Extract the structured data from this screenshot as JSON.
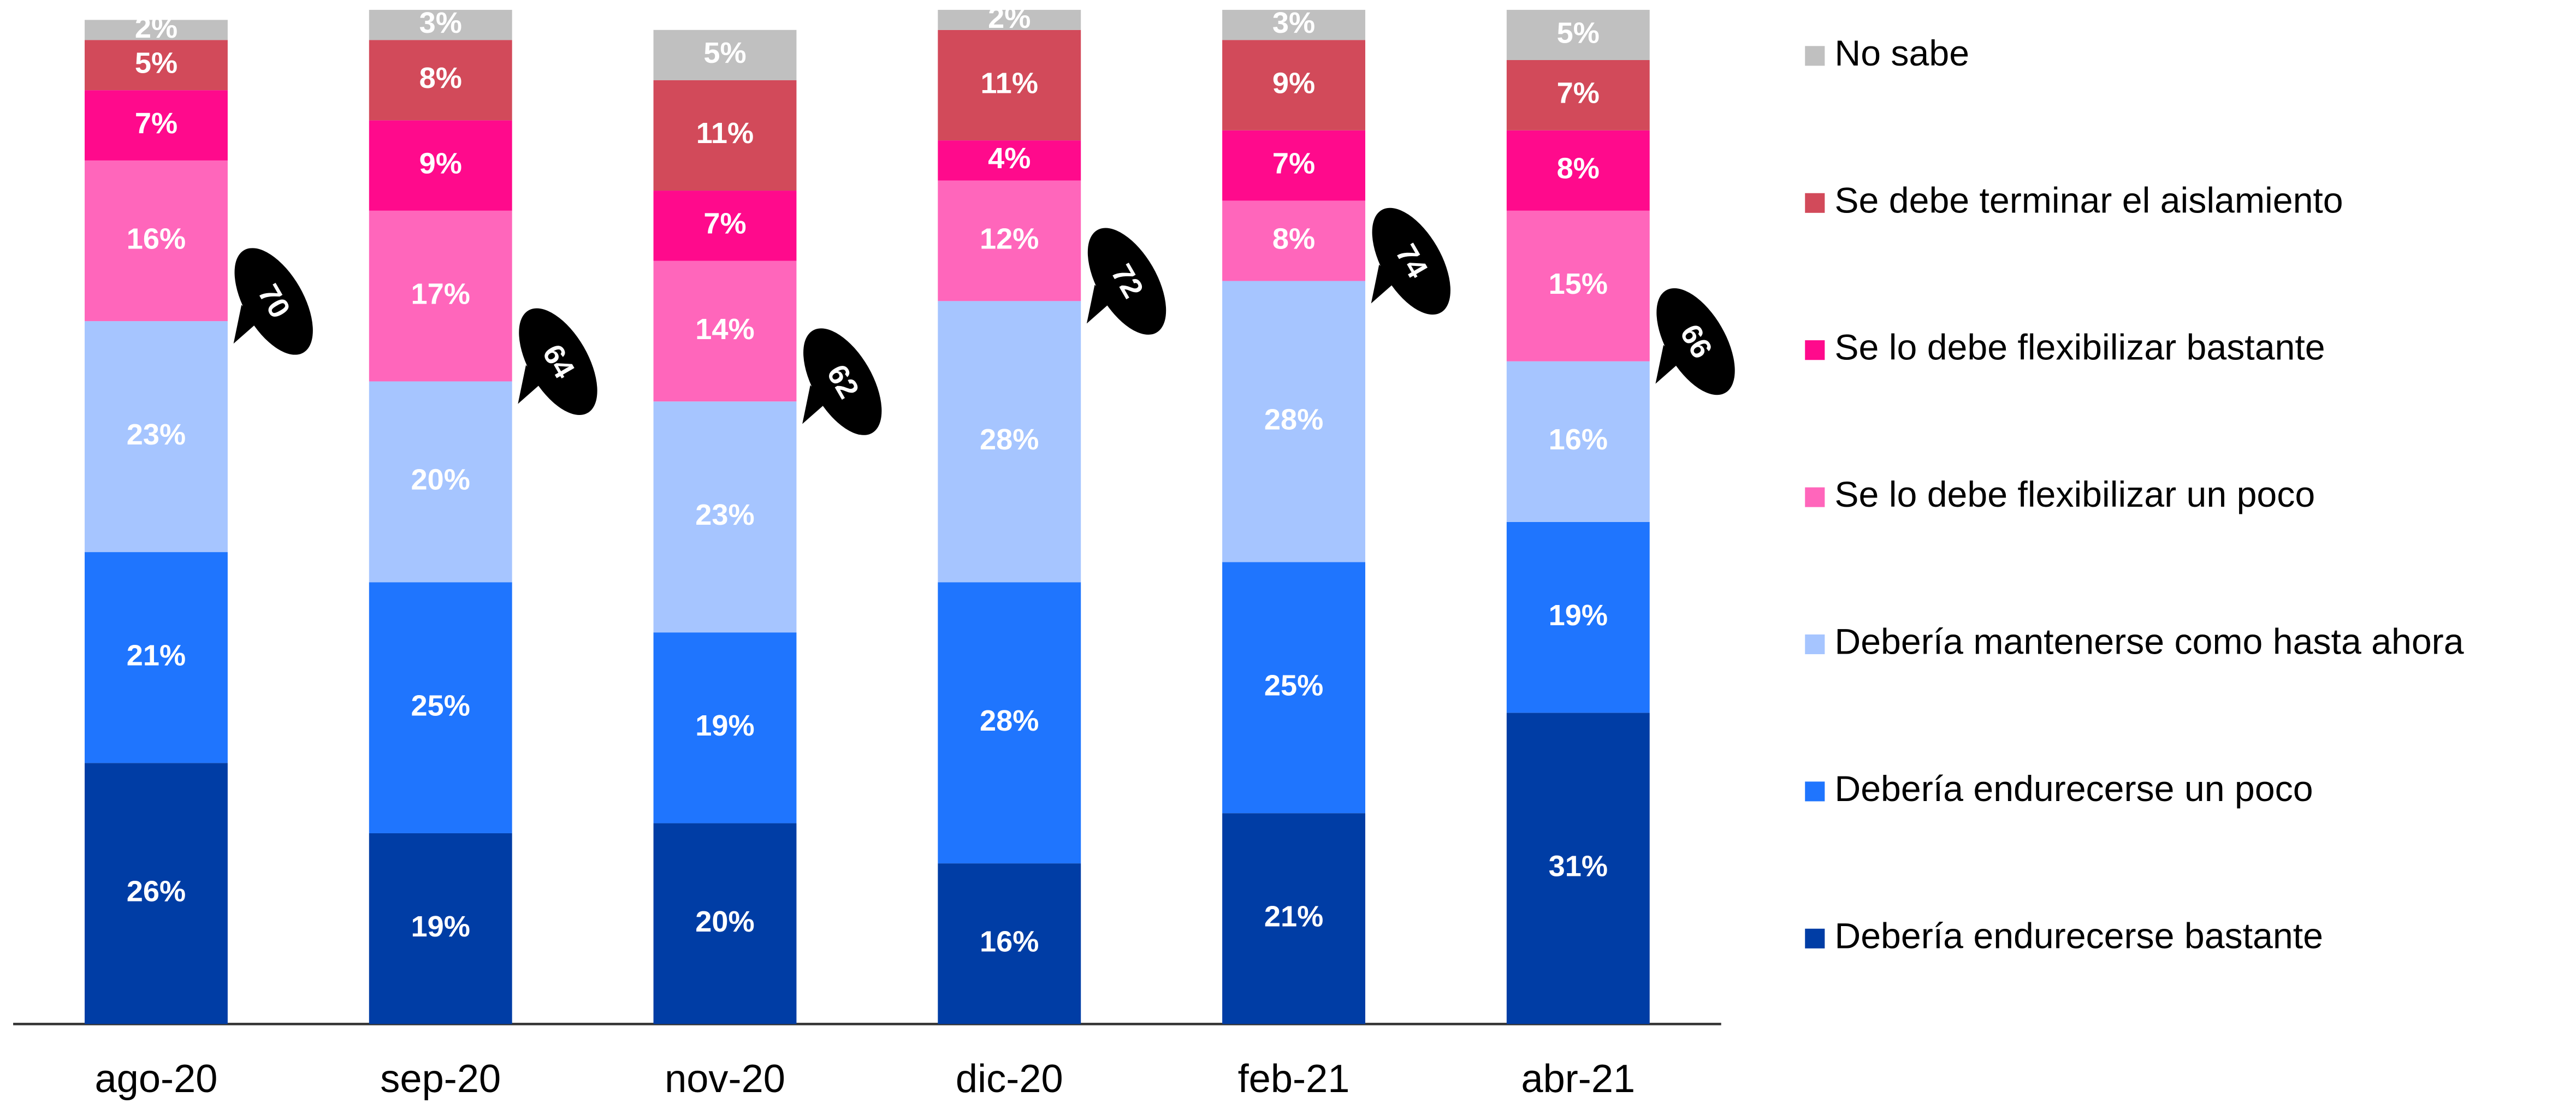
{
  "chart_data": {
    "type": "stacked-bar",
    "categories": [
      "ago-20",
      "sep-20",
      "nov-20",
      "dic-20",
      "feb-21",
      "abr-21"
    ],
    "series": [
      {
        "name": "Debería endurecerse bastante",
        "color": "#003da5",
        "values": [
          26,
          19,
          20,
          16,
          21,
          31
        ],
        "value_labels": [
          "26%",
          "19%",
          "20%",
          "16%",
          "21%",
          "31%"
        ]
      },
      {
        "name": "Debería endurecerse un poco",
        "color": "#1f75fe",
        "values": [
          21,
          25,
          19,
          28,
          25,
          19
        ],
        "value_labels": [
          "21%",
          "25%",
          "19%",
          "28%",
          "25%",
          "19%"
        ]
      },
      {
        "name": "Debería mantenerse como hasta ahora",
        "color": "#a6c5ff",
        "values": [
          23,
          20,
          23,
          28,
          28,
          16
        ],
        "value_labels": [
          "23%",
          "20%",
          "23%",
          "28%",
          "28%",
          "16%"
        ]
      },
      {
        "name": "Se lo debe flexibilizar un poco",
        "color": "#ff66bb",
        "values": [
          16,
          17,
          14,
          12,
          8,
          15
        ],
        "value_labels": [
          "16%",
          "17%",
          "14%",
          "12%",
          "8%",
          "15%"
        ]
      },
      {
        "name": "Se lo debe flexibilizar bastante",
        "color": "#ff0a8c",
        "values": [
          7,
          9,
          7,
          4,
          7,
          8
        ],
        "value_labels": [
          "7%",
          "9%",
          "7%",
          "4%",
          "7%",
          "8%"
        ]
      },
      {
        "name": "Se debe terminar el aislamiento",
        "color": "#d24a5a",
        "values": [
          5,
          8,
          11,
          11,
          9,
          7
        ],
        "value_labels": [
          "5%",
          "8%",
          "11%",
          "11%",
          "9%",
          "7%"
        ]
      },
      {
        "name": "No sabe",
        "color": "#c0c0c0",
        "values": [
          2,
          3,
          5,
          2,
          3,
          5
        ],
        "value_labels": [
          "2%",
          "3%",
          "5%",
          "2%",
          "3%",
          "5%"
        ]
      }
    ],
    "annotations": [
      70,
      64,
      62,
      72,
      74,
      66
    ]
  }
}
